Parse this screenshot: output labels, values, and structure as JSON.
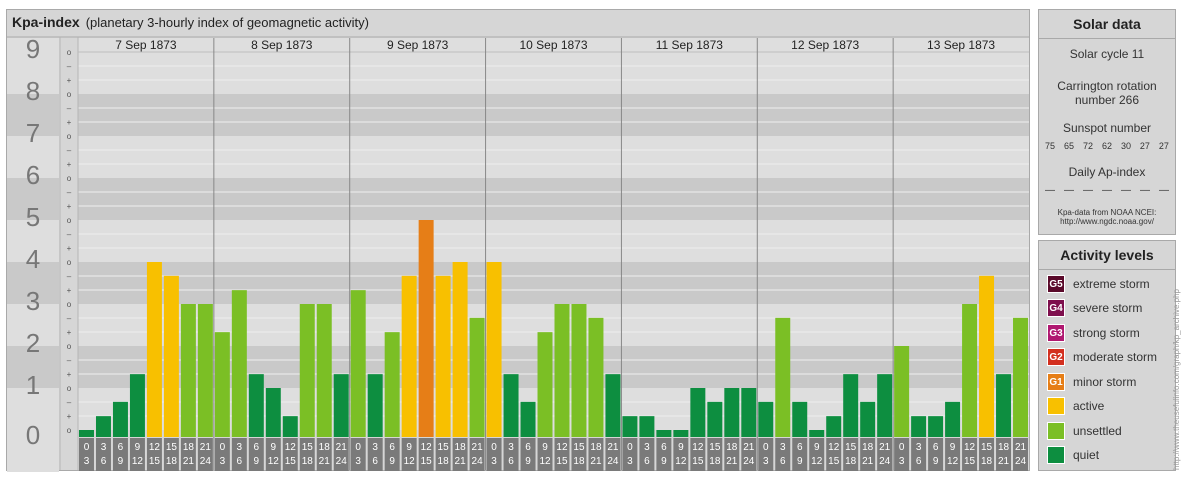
{
  "header": {
    "title": "Kpa-index",
    "subtitle": "(planetary 3-hourly index of geomagnetic activity)"
  },
  "chart_data": {
    "type": "bar",
    "title": "Kpa-index",
    "subtitle": "(planetary 3-hourly index of geomagnetic activity)",
    "ylim": [
      0,
      9
    ],
    "y_ticks": [
      "0",
      "1",
      "2",
      "3",
      "4",
      "5",
      "6",
      "7",
      "8",
      "9"
    ],
    "y_subticks": [
      "o",
      "+",
      "–"
    ],
    "days": [
      "7 Sep 1873",
      "8 Sep 1873",
      "9 Sep 1873",
      "10 Sep 1873",
      "11 Sep 1873",
      "12 Sep 1873",
      "13 Sep 1873"
    ],
    "hour_starts": [
      "0",
      "3",
      "6",
      "9",
      "12",
      "15",
      "18",
      "21"
    ],
    "hour_ends": [
      "3",
      "6",
      "9",
      "12",
      "15",
      "18",
      "21",
      "24"
    ],
    "values": [
      [
        0.0,
        0.33,
        0.67,
        1.33,
        4.0,
        3.67,
        3.0,
        3.0
      ],
      [
        2.33,
        3.33,
        1.33,
        1.0,
        0.33,
        3.0,
        3.0,
        1.33
      ],
      [
        3.33,
        1.33,
        2.33,
        3.67,
        5.0,
        3.67,
        4.0,
        2.67
      ],
      [
        4.0,
        1.33,
        0.67,
        2.33,
        3.0,
        3.0,
        2.67,
        1.33
      ],
      [
        0.33,
        0.33,
        0.0,
        0.0,
        1.0,
        0.67,
        1.0,
        1.0
      ],
      [
        0.67,
        2.67,
        0.67,
        0.0,
        0.33,
        1.33,
        0.67,
        1.33
      ],
      [
        2.0,
        0.33,
        0.33,
        0.67,
        3.0,
        3.67,
        1.33,
        2.67
      ]
    ],
    "bar_colors": {
      "quiet": "#0d8e40",
      "unsettled": "#7bbf25",
      "active": "#f8c000",
      "minor": "#e67e17"
    }
  },
  "solar": {
    "header": "Solar data",
    "cycle": "Solar cycle 11",
    "carrington_line1": "Carrington rotation",
    "carrington_line2": "number 266",
    "sunspot_title": "Sunspot number",
    "sunspots": [
      "75",
      "65",
      "72",
      "62",
      "30",
      "27",
      "27"
    ],
    "ap_title": "Daily Ap-index",
    "ap_values": [
      "—",
      "—",
      "—",
      "—",
      "—",
      "—",
      "—"
    ],
    "source_line1": "Kpa-data from NOAA NCEI:",
    "source_line2": "http://www.ngdc.noaa.gov/"
  },
  "activity": {
    "header": "Activity levels",
    "items": [
      {
        "code": "G5",
        "label": "extreme storm",
        "color": "#5a0a2a"
      },
      {
        "code": "G4",
        "label": "severe storm",
        "color": "#7e0f4d"
      },
      {
        "code": "G3",
        "label": "strong storm",
        "color": "#b01870"
      },
      {
        "code": "G2",
        "label": "moderate storm",
        "color": "#d32f1f"
      },
      {
        "code": "G1",
        "label": "minor storm",
        "color": "#e67e17"
      },
      {
        "code": "",
        "label": "active",
        "color": "#f8c000"
      },
      {
        "code": "",
        "label": "unsettled",
        "color": "#7bbf25"
      },
      {
        "code": "",
        "label": "quiet",
        "color": "#0d8e40"
      }
    ]
  },
  "credit": "http://www.theusefulinfo.com/graph/kp_archive.php"
}
